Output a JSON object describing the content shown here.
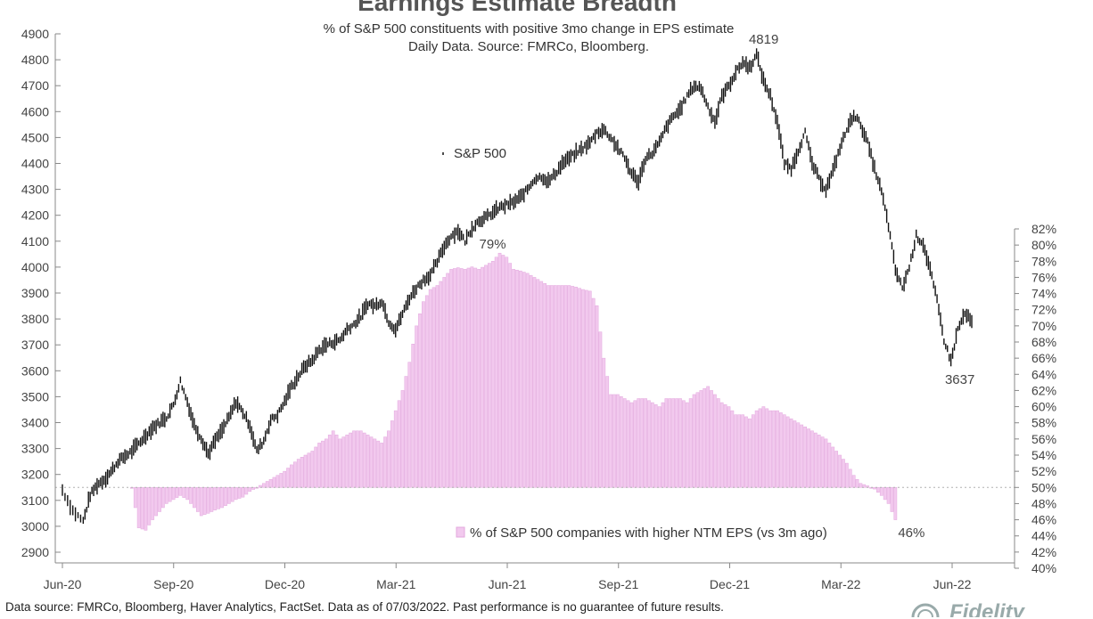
{
  "title": "Earnings Estimate Breadth",
  "subtitle_line1": "% of S&P 500 constituents with positive 3mo change in EPS estimate",
  "subtitle_line2": "Daily Data.  Source: FMRCo, Bloomberg.",
  "footer": "Data source: FMRCo, Bloomberg, Haver Analytics, FactSet. Data as of 07/03/2022. Past performance is no guarantee of future results.",
  "logo_text": "Fidelity",
  "colors": {
    "price": "#111111",
    "bars": "#f2c9ee",
    "bars_stroke": "#e3a8de",
    "axis": "#888888",
    "text": "#444444"
  },
  "chart_data": {
    "type": "line+bar",
    "x_ticks": [
      "Jun-20",
      "Sep-20",
      "Dec-20",
      "Mar-21",
      "Jun-21",
      "Sep-21",
      "Dec-21",
      "Mar-22",
      "Jun-22"
    ],
    "left_axis": {
      "ticks": [
        2900,
        3000,
        3100,
        3200,
        3300,
        3400,
        3500,
        3600,
        3700,
        3800,
        3900,
        4000,
        4100,
        4200,
        4300,
        4400,
        4500,
        4600,
        4700,
        4800,
        4900
      ],
      "ylim": [
        2900,
        4900
      ]
    },
    "right_axis": {
      "ticks": [
        "40%",
        "42%",
        "44%",
        "46%",
        "48%",
        "50%",
        "52%",
        "54%",
        "56%",
        "58%",
        "60%",
        "62%",
        "64%",
        "66%",
        "68%",
        "70%",
        "72%",
        "74%",
        "76%",
        "78%",
        "80%",
        "82%"
      ],
      "ylim": [
        40,
        82
      ],
      "baseline": 50
    },
    "series": [
      {
        "name": "S&P 500",
        "kind": "price",
        "points": [
          [
            0,
            3140
          ],
          [
            3,
            3060
          ],
          [
            6,
            3020
          ],
          [
            8,
            3120
          ],
          [
            10,
            3160
          ],
          [
            12,
            3180
          ],
          [
            14,
            3210
          ],
          [
            16,
            3250
          ],
          [
            18,
            3270
          ],
          [
            20,
            3290
          ],
          [
            22,
            3320
          ],
          [
            24,
            3350
          ],
          [
            26,
            3380
          ],
          [
            28,
            3400
          ],
          [
            30,
            3420
          ],
          [
            32,
            3470
          ],
          [
            34,
            3560
          ],
          [
            36,
            3480
          ],
          [
            38,
            3390
          ],
          [
            40,
            3340
          ],
          [
            42,
            3280
          ],
          [
            44,
            3330
          ],
          [
            46,
            3370
          ],
          [
            48,
            3420
          ],
          [
            50,
            3480
          ],
          [
            52,
            3440
          ],
          [
            54,
            3390
          ],
          [
            56,
            3290
          ],
          [
            58,
            3330
          ],
          [
            60,
            3410
          ],
          [
            62,
            3430
          ],
          [
            64,
            3480
          ],
          [
            66,
            3540
          ],
          [
            68,
            3580
          ],
          [
            70,
            3620
          ],
          [
            72,
            3640
          ],
          [
            74,
            3680
          ],
          [
            76,
            3700
          ],
          [
            78,
            3710
          ],
          [
            80,
            3720
          ],
          [
            82,
            3760
          ],
          [
            84,
            3780
          ],
          [
            86,
            3810
          ],
          [
            88,
            3860
          ],
          [
            90,
            3850
          ],
          [
            92,
            3870
          ],
          [
            94,
            3790
          ],
          [
            96,
            3760
          ],
          [
            98,
            3820
          ],
          [
            100,
            3880
          ],
          [
            102,
            3920
          ],
          [
            104,
            3950
          ],
          [
            106,
            3970
          ],
          [
            108,
            4020
          ],
          [
            110,
            4080
          ],
          [
            112,
            4120
          ],
          [
            114,
            4140
          ],
          [
            116,
            4100
          ],
          [
            118,
            4150
          ],
          [
            120,
            4180
          ],
          [
            122,
            4190
          ],
          [
            124,
            4210
          ],
          [
            126,
            4230
          ],
          [
            128,
            4240
          ],
          [
            130,
            4250
          ],
          [
            132,
            4270
          ],
          [
            134,
            4300
          ],
          [
            136,
            4340
          ],
          [
            138,
            4350
          ],
          [
            140,
            4330
          ],
          [
            142,
            4360
          ],
          [
            144,
            4400
          ],
          [
            146,
            4420
          ],
          [
            148,
            4440
          ],
          [
            150,
            4460
          ],
          [
            152,
            4480
          ],
          [
            154,
            4520
          ],
          [
            156,
            4530
          ],
          [
            158,
            4500
          ],
          [
            160,
            4460
          ],
          [
            162,
            4420
          ],
          [
            164,
            4360
          ],
          [
            166,
            4330
          ],
          [
            168,
            4420
          ],
          [
            170,
            4440
          ],
          [
            172,
            4480
          ],
          [
            174,
            4540
          ],
          [
            176,
            4580
          ],
          [
            178,
            4610
          ],
          [
            180,
            4660
          ],
          [
            182,
            4700
          ],
          [
            184,
            4690
          ],
          [
            186,
            4620
          ],
          [
            188,
            4560
          ],
          [
            190,
            4660
          ],
          [
            192,
            4700
          ],
          [
            194,
            4750
          ],
          [
            196,
            4790
          ],
          [
            198,
            4770
          ],
          [
            200,
            4819
          ],
          [
            202,
            4720
          ],
          [
            204,
            4660
          ],
          [
            206,
            4560
          ],
          [
            208,
            4400
          ],
          [
            210,
            4380
          ],
          [
            212,
            4450
          ],
          [
            214,
            4520
          ],
          [
            216,
            4400
          ],
          [
            218,
            4340
          ],
          [
            220,
            4300
          ],
          [
            222,
            4370
          ],
          [
            224,
            4460
          ],
          [
            226,
            4530
          ],
          [
            228,
            4590
          ],
          [
            230,
            4550
          ],
          [
            232,
            4480
          ],
          [
            234,
            4380
          ],
          [
            236,
            4290
          ],
          [
            238,
            4160
          ],
          [
            240,
            3990
          ],
          [
            242,
            3920
          ],
          [
            244,
            4000
          ],
          [
            246,
            4120
          ],
          [
            248,
            4090
          ],
          [
            250,
            3990
          ],
          [
            252,
            3870
          ],
          [
            254,
            3720
          ],
          [
            256,
            3637
          ],
          [
            258,
            3760
          ],
          [
            260,
            3820
          ],
          [
            262,
            3790
          ]
        ],
        "annotations": [
          {
            "label": "4819",
            "at": 200
          },
          {
            "label": "3637",
            "at": 256
          }
        ]
      },
      {
        "name": "% of S&P 500 companies with higher NTM EPS (vs 3m ago)",
        "kind": "bars_pct",
        "points": [
          [
            20,
            50
          ],
          [
            22,
            45
          ],
          [
            24,
            44.7
          ],
          [
            26,
            46
          ],
          [
            28,
            47
          ],
          [
            30,
            48
          ],
          [
            32,
            48.5
          ],
          [
            34,
            49
          ],
          [
            36,
            48.5
          ],
          [
            38,
            47.5
          ],
          [
            40,
            46.5
          ],
          [
            42,
            46.8
          ],
          [
            44,
            47.2
          ],
          [
            46,
            47.5
          ],
          [
            48,
            48
          ],
          [
            50,
            48.5
          ],
          [
            52,
            48.8
          ],
          [
            54,
            49.5
          ],
          [
            56,
            50
          ],
          [
            58,
            50.5
          ],
          [
            60,
            51
          ],
          [
            62,
            51.5
          ],
          [
            64,
            52
          ],
          [
            66,
            52.8
          ],
          [
            68,
            53.5
          ],
          [
            70,
            54
          ],
          [
            72,
            54.5
          ],
          [
            74,
            55.5
          ],
          [
            76,
            56
          ],
          [
            78,
            57
          ],
          [
            80,
            56
          ],
          [
            82,
            56.5
          ],
          [
            84,
            57
          ],
          [
            86,
            57
          ],
          [
            88,
            56.5
          ],
          [
            90,
            56
          ],
          [
            92,
            55.5
          ],
          [
            94,
            57
          ],
          [
            96,
            59.5
          ],
          [
            98,
            62
          ],
          [
            100,
            65.5
          ],
          [
            102,
            70
          ],
          [
            104,
            73
          ],
          [
            106,
            74.5
          ],
          [
            108,
            75
          ],
          [
            110,
            76
          ],
          [
            112,
            77
          ],
          [
            114,
            77.2
          ],
          [
            116,
            77
          ],
          [
            118,
            77.3
          ],
          [
            120,
            77
          ],
          [
            122,
            77.5
          ],
          [
            124,
            78
          ],
          [
            126,
            79
          ],
          [
            128,
            78.5
          ],
          [
            130,
            77
          ],
          [
            132,
            76.8
          ],
          [
            134,
            76.5
          ],
          [
            136,
            76
          ],
          [
            138,
            75.5
          ],
          [
            140,
            75
          ],
          [
            142,
            75
          ],
          [
            144,
            75
          ],
          [
            146,
            75
          ],
          [
            148,
            74.8
          ],
          [
            150,
            74.5
          ],
          [
            152,
            74.3
          ],
          [
            154,
            72.5
          ],
          [
            156,
            66
          ],
          [
            158,
            61.5
          ],
          [
            160,
            61.5
          ],
          [
            162,
            61
          ],
          [
            164,
            60.5
          ],
          [
            166,
            61
          ],
          [
            168,
            61
          ],
          [
            170,
            60.5
          ],
          [
            172,
            60
          ],
          [
            174,
            61
          ],
          [
            176,
            61
          ],
          [
            178,
            61
          ],
          [
            180,
            60.5
          ],
          [
            182,
            61.5
          ],
          [
            184,
            62
          ],
          [
            186,
            62.5
          ],
          [
            188,
            61.5
          ],
          [
            190,
            60.5
          ],
          [
            192,
            60
          ],
          [
            194,
            59
          ],
          [
            196,
            59
          ],
          [
            198,
            58.5
          ],
          [
            200,
            59.5
          ],
          [
            202,
            60
          ],
          [
            204,
            59.5
          ],
          [
            206,
            59.5
          ],
          [
            208,
            59
          ],
          [
            210,
            58.5
          ],
          [
            212,
            58
          ],
          [
            214,
            57.5
          ],
          [
            216,
            57
          ],
          [
            218,
            56.5
          ],
          [
            220,
            56
          ],
          [
            222,
            55
          ],
          [
            224,
            54
          ],
          [
            226,
            53
          ],
          [
            228,
            51.5
          ],
          [
            230,
            50.5
          ],
          [
            232,
            50.2
          ],
          [
            234,
            49.8
          ],
          [
            236,
            49
          ],
          [
            238,
            48
          ],
          [
            240,
            46
          ]
        ],
        "annotations": [
          {
            "label": "79%",
            "at": 126
          },
          {
            "label": "46%",
            "at": 240
          }
        ]
      }
    ]
  }
}
